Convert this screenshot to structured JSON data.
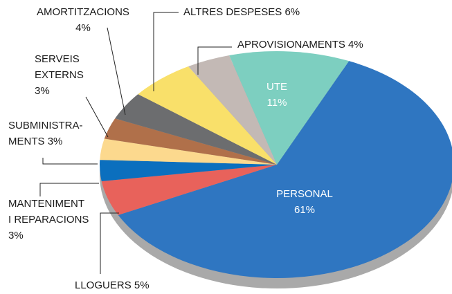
{
  "chart_data": {
    "type": "pie",
    "categories": [
      "PERSONAL",
      "LLOGUERS",
      "MANTENIMENT\nI REPARACIONS",
      "SUBMINISTRA-\nMENTS",
      "SERVEIS\nEXTERNS",
      "AMORTITZACIONS",
      "ALTRES DESPESES",
      "APROVISIONAMENTS",
      "UTE"
    ],
    "values": [
      61,
      5,
      3,
      3,
      3,
      4,
      6,
      4,
      11
    ],
    "value_labels": [
      "61%",
      "5%",
      "3%",
      "3%",
      "3%",
      "4%",
      "6%",
      "4%",
      "11%"
    ],
    "colors": [
      "#2f76c1",
      "#e8625b",
      "#0b6fbe",
      "#fcd98e",
      "#b0704a",
      "#6c6d6f",
      "#f9e06a",
      "#c3b9b5",
      "#7dcfc0"
    ]
  }
}
